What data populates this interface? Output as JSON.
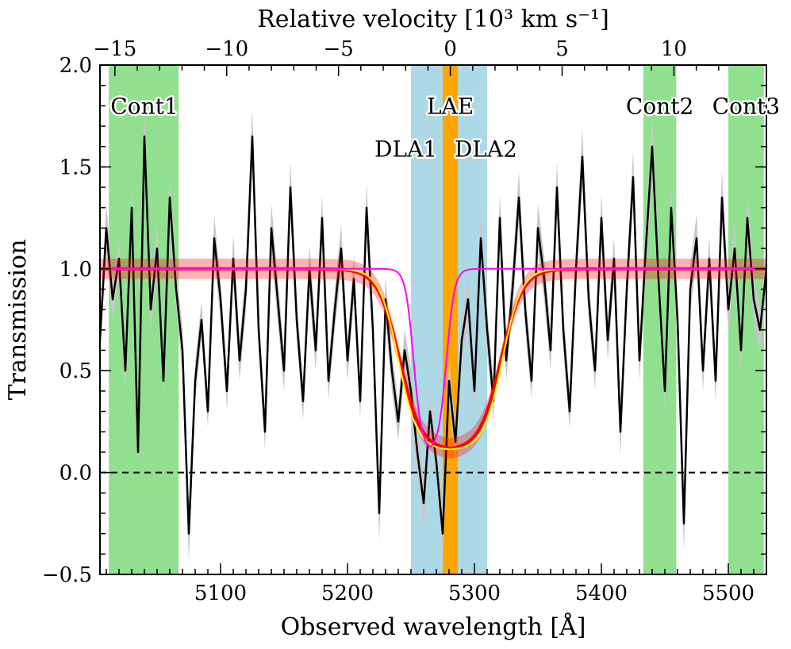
{
  "chart_data": {
    "type": "line",
    "xlabel": "Observed wavelength [Å]",
    "ylabel": "Transmission",
    "top_xlabel": "Relative velocity [10³ km s⁻¹]",
    "xlim": [
      5005,
      5530
    ],
    "ylim": [
      -0.5,
      2.0
    ],
    "x_ticks": [
      5100,
      5200,
      5300,
      5400,
      5500
    ],
    "x_tick_labels": [
      "5100",
      "5200",
      "5300",
      "5400",
      "5500"
    ],
    "y_ticks": [
      -0.5,
      0.0,
      0.5,
      1.0,
      1.5,
      2.0
    ],
    "y_tick_labels": [
      "−0.5",
      "0.0",
      "0.5",
      "1.0",
      "1.5",
      "2.0"
    ],
    "top_ticks": [
      -15,
      -10,
      -5,
      0,
      5,
      10
    ],
    "top_tick_labels": [
      "−15",
      "−10",
      "−5",
      "0",
      "5",
      "10"
    ],
    "velocity_reference_wavelength": 5281,
    "grid": false,
    "zero_line": {
      "y": 0.0,
      "style": "dashed"
    },
    "shaded_regions": [
      {
        "name": "Cont1",
        "x": [
          5012,
          5067
        ],
        "color": "#90e090"
      },
      {
        "name": "DLA",
        "x": [
          5250,
          5310
        ],
        "color": "#add8e6"
      },
      {
        "name": "LAE",
        "x": [
          5275,
          5287
        ],
        "color": "#ffa500"
      },
      {
        "name": "Cont2",
        "x": [
          5433,
          5459
        ],
        "color": "#90e090"
      },
      {
        "name": "Cont3",
        "x": [
          5500,
          5528
        ],
        "color": "#90e090"
      }
    ],
    "region_labels": [
      {
        "text": "Cont1",
        "x": 5040,
        "y": 1.76
      },
      {
        "text": "LAE",
        "x": 5281,
        "y": 1.76
      },
      {
        "text": "DLA1",
        "x": 5246,
        "y": 1.55
      },
      {
        "text": "DLA2",
        "x": 5309,
        "y": 1.55
      },
      {
        "text": "Cont2",
        "x": 5446,
        "y": 1.76
      },
      {
        "text": "Cont3",
        "x": 5514,
        "y": 1.76
      }
    ],
    "model_curves": [
      {
        "color": "#ff0000",
        "center": 5281,
        "half_width": 40,
        "depth": 0.89,
        "edge_width": 8.5,
        "band": 0.05
      },
      {
        "color": "#ffff00",
        "center": 5281,
        "half_width": 41,
        "depth": 0.89,
        "edge_width": 7.5
      },
      {
        "color": "#ff00ff",
        "center": 5265,
        "half_width": 13,
        "depth": 0.89,
        "edge_width": 3.2
      }
    ],
    "series": [
      {
        "color": "#000000",
        "error_color": "#c8c8c8",
        "x": [
          5005,
          5010,
          5015,
          5020,
          5025,
          5030,
          5035,
          5040,
          5045,
          5050,
          5055,
          5060,
          5065,
          5070,
          5075,
          5080,
          5085,
          5090,
          5095,
          5100,
          5105,
          5110,
          5115,
          5120,
          5125,
          5130,
          5135,
          5140,
          5145,
          5150,
          5155,
          5160,
          5165,
          5170,
          5175,
          5180,
          5185,
          5190,
          5195,
          5200,
          5205,
          5210,
          5215,
          5220,
          5225,
          5230,
          5235,
          5240,
          5245,
          5250,
          5255,
          5260,
          5265,
          5270,
          5275,
          5280,
          5285,
          5290,
          5295,
          5300,
          5305,
          5310,
          5315,
          5320,
          5325,
          5330,
          5335,
          5340,
          5345,
          5350,
          5355,
          5360,
          5365,
          5370,
          5375,
          5380,
          5385,
          5390,
          5395,
          5400,
          5405,
          5410,
          5415,
          5420,
          5425,
          5430,
          5435,
          5440,
          5445,
          5450,
          5455,
          5460,
          5465,
          5470,
          5475,
          5480,
          5485,
          5490,
          5495,
          5500,
          5505,
          5510,
          5515,
          5520,
          5525,
          5530
        ],
        "y": [
          0.65,
          1.2,
          0.85,
          1.05,
          0.5,
          1.3,
          0.1,
          1.65,
          0.8,
          1.1,
          0.45,
          1.35,
          0.9,
          0.6,
          -0.3,
          0.45,
          0.75,
          0.3,
          1.15,
          0.85,
          0.4,
          1.05,
          0.55,
          0.9,
          1.65,
          0.7,
          0.2,
          1.2,
          0.85,
          0.5,
          1.4,
          0.75,
          0.35,
          1.0,
          0.6,
          1.25,
          0.45,
          0.8,
          1.1,
          0.55,
          0.95,
          0.35,
          1.3,
          0.7,
          -0.2,
          0.85,
          0.5,
          0.25,
          0.6,
          0.4,
          0.1,
          -0.15,
          0.3,
          0.05,
          -0.3,
          0.45,
          0.15,
          0.65,
          0.85,
          0.4,
          1.15,
          0.7,
          0.35,
          1.25,
          0.55,
          0.9,
          1.35,
          0.8,
          0.45,
          1.2,
          0.95,
          0.6,
          1.4,
          0.7,
          0.3,
          1.0,
          1.55,
          0.85,
          0.5,
          1.25,
          0.65,
          1.05,
          0.2,
          0.9,
          1.45,
          0.55,
          1.1,
          1.6,
          0.95,
          0.4,
          1.3,
          0.75,
          -0.25,
          0.9,
          1.15,
          0.5,
          1.05,
          0.45,
          1.35,
          0.8,
          1.1,
          0.6,
          1.25,
          0.85,
          0.7,
          1.0
        ],
        "errors": [
          0.08,
          0.12,
          0.1,
          0.09,
          0.11,
          0.13,
          0.08,
          0.15,
          0.1,
          0.12,
          0.09,
          0.11,
          0.1,
          0.12,
          0.14,
          0.1,
          0.09,
          0.08,
          0.11,
          0.1,
          0.09,
          0.12,
          0.1,
          0.11,
          0.14,
          0.1,
          0.09,
          0.12,
          0.11,
          0.1,
          0.13,
          0.1,
          0.09,
          0.12,
          0.1,
          0.11,
          0.09,
          0.1,
          0.12,
          0.1,
          0.11,
          0.09,
          0.12,
          0.1,
          0.14,
          0.11,
          0.1,
          0.09,
          0.1,
          0.11,
          0.1,
          0.12,
          0.1,
          0.09,
          0.13,
          0.1,
          0.09,
          0.11,
          0.1,
          0.1,
          0.12,
          0.11,
          0.1,
          0.12,
          0.1,
          0.11,
          0.13,
          0.1,
          0.09,
          0.12,
          0.11,
          0.1,
          0.13,
          0.1,
          0.09,
          0.11,
          0.14,
          0.1,
          0.09,
          0.12,
          0.1,
          0.11,
          0.12,
          0.1,
          0.13,
          0.1,
          0.11,
          0.15,
          0.11,
          0.1,
          0.12,
          0.1,
          0.14,
          0.11,
          0.12,
          0.1,
          0.11,
          0.1,
          0.13,
          0.1,
          0.12,
          0.1,
          0.12,
          0.11,
          0.1,
          0.1
        ]
      }
    ]
  }
}
